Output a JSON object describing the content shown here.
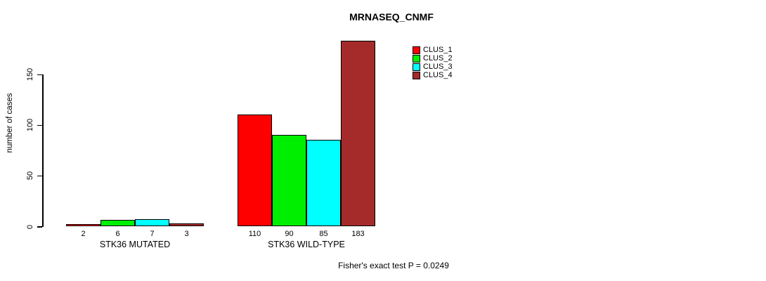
{
  "figure": {
    "title": "MRNASEQ_CNMF",
    "ylabel": "number of cases",
    "footnote": "Fisher's exact test P = 0.0249"
  },
  "chart_data": {
    "type": "bar",
    "title": "MRNASEQ_CNMF",
    "xlabel": "",
    "ylabel": "number of cases",
    "categories": [
      "STK36 MUTATED",
      "STK36 WILD-TYPE"
    ],
    "series": [
      {
        "name": "CLUS_1",
        "color": "#ff0000",
        "values": [
          2,
          110
        ]
      },
      {
        "name": "CLUS_2",
        "color": "#00ee00",
        "values": [
          6,
          90
        ]
      },
      {
        "name": "CLUS_3",
        "color": "#00ffff",
        "values": [
          7,
          85
        ]
      },
      {
        "name": "CLUS_4",
        "color": "#a52a2a",
        "values": [
          3,
          183
        ]
      }
    ],
    "yticks": [
      0,
      50,
      100,
      150
    ],
    "ylim": [
      0,
      183
    ],
    "bar_value_labels": true,
    "grid": false,
    "legend_position": "top-right",
    "annotation": "Fisher's exact test P = 0.0249"
  }
}
